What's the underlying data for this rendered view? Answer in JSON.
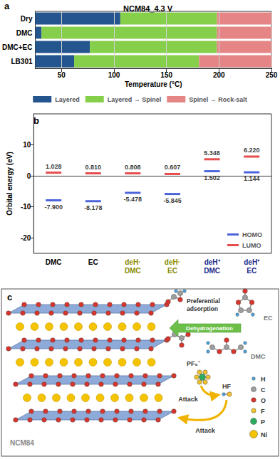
{
  "chart_data": [
    {
      "type": "bar",
      "title": "NCM84_4.3 V",
      "annotations": [
        "a"
      ],
      "x_label": "Temperature (°C)",
      "orientation": "horizontal",
      "stacked": true,
      "grid": true,
      "legend": "bottom",
      "categories": [
        "Dry",
        "DMC",
        "DMC+EC",
        "LB301"
      ],
      "series": [
        {
          "name": "Layered",
          "color": "#24558f",
          "values": [
            106,
            31,
            77,
            62
          ]
        },
        {
          "name": "Layered → Spinel",
          "color": "#86cf4a",
          "values": [
            92,
            167,
            121,
            119
          ]
        },
        {
          "name": "Spinel → Rock-salt",
          "color": "#e58585",
          "values": [
            52,
            52,
            52,
            69
          ]
        }
      ],
      "xlim": [
        25,
        250
      ],
      "xticks": [
        50,
        100,
        150,
        200,
        250
      ]
    },
    {
      "type": "scatter",
      "annotations": [
        "b"
      ],
      "y_label": "Orbital energy (eV)",
      "grid": false,
      "legend": "lower right",
      "data_labels": true,
      "marker": "dash",
      "categories": [
        "DMC",
        "EC",
        "deH· DMC",
        "deH· EC",
        "deH⁺ DMC",
        "deH⁺ EC"
      ],
      "series": [
        {
          "name": "HOMO",
          "color": "#1f3fd1",
          "values": [
            -7.9,
            -8.178,
            -5.478,
            -5.845,
            1.502,
            1.144
          ],
          "value_labels": [
            "-7.900",
            "-8.178",
            "-5.478",
            "-5.845",
            "1.502",
            "1.144"
          ]
        },
        {
          "name": "LUMO",
          "color": "#e02020",
          "values": [
            1.028,
            0.81,
            0.808,
            0.607,
            5.348,
            6.22
          ],
          "value_labels": [
            "1.028",
            "0.810",
            "0.808",
            "0.607",
            "5.348",
            "6.220"
          ]
        }
      ],
      "ylim": [
        -25,
        20
      ],
      "yticks": [
        -20,
        -10,
        0,
        10
      ]
    }
  ],
  "diagram": {
    "label": "c",
    "adsorption": "Preferential adsorption",
    "process": "Dehydrogenation",
    "molecules": [
      "EC",
      "DMC"
    ],
    "material": "NCM84",
    "anion": "PF₆⁻",
    "acid": "HF",
    "attacks": [
      "Attack",
      "Attack"
    ],
    "atoms": [
      {
        "symbol": "H",
        "color": "#4aa3df"
      },
      {
        "symbol": "C",
        "color": "#9e9e9e"
      },
      {
        "symbol": "O",
        "color": "#d9342b"
      },
      {
        "symbol": "F",
        "color": "#f2c12e"
      },
      {
        "symbol": "P",
        "color": "#2eab5f"
      },
      {
        "symbol": "Ni",
        "color": "#f5c400"
      }
    ]
  }
}
